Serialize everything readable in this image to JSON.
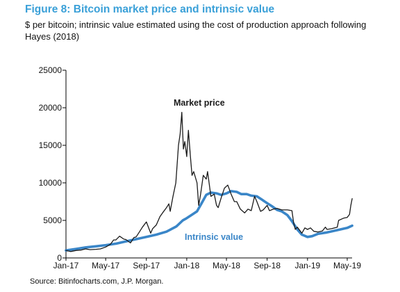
{
  "figure": {
    "title": "Figure 8: Bitcoin market price and intrinsic value",
    "subtitle": "$ per bitcoin; intrinsic value estimated using the cost of production approach following Hayes (2018)",
    "source": "Source: Bitinfocharts.com, J.P. Morgan."
  },
  "colors": {
    "title": "#3aa0d8",
    "market_price": "#1a1a1a",
    "intrinsic_value": "#3a86c8"
  },
  "chart_data": {
    "type": "line",
    "title": "Figure 8: Bitcoin market price and intrinsic value",
    "subtitle": "$ per bitcoin; intrinsic value estimated using the cost of production approach following Hayes (2018)",
    "xlabel": "",
    "ylabel": "",
    "ylim": [
      0,
      25000
    ],
    "yticks": [
      0,
      5000,
      10000,
      15000,
      20000,
      25000
    ],
    "ytick_labels": [
      "0",
      "5000",
      "10000",
      "15000",
      "20000",
      "25000"
    ],
    "xlim": [
      "2017-01-01",
      "2019-06-01"
    ],
    "xticks": [
      "2017-01-01",
      "2017-05-01",
      "2017-09-01",
      "2018-01-01",
      "2018-05-01",
      "2018-09-01",
      "2019-01-01",
      "2019-05-01"
    ],
    "xtick_labels": [
      "Jan-17",
      "May-17",
      "Sep-17",
      "Jan-18",
      "May-18",
      "Sep-18",
      "Jan-19",
      "May-19"
    ],
    "grid": false,
    "legend": "none",
    "annotations": [
      {
        "text": "Market price",
        "series": "Market price"
      },
      {
        "text": "Intrinsic value",
        "series": "Intrinsic value"
      }
    ],
    "series": [
      {
        "name": "Market price",
        "points": [
          [
            "2017-01-01",
            1000
          ],
          [
            "2017-01-15",
            850
          ],
          [
            "2017-02-01",
            1000
          ],
          [
            "2017-02-15",
            1050
          ],
          [
            "2017-03-01",
            1200
          ],
          [
            "2017-03-15",
            1100
          ],
          [
            "2017-04-01",
            1150
          ],
          [
            "2017-04-15",
            1200
          ],
          [
            "2017-05-01",
            1450
          ],
          [
            "2017-05-15",
            1800
          ],
          [
            "2017-05-25",
            2400
          ],
          [
            "2017-06-01",
            2400
          ],
          [
            "2017-06-12",
            2900
          ],
          [
            "2017-06-25",
            2500
          ],
          [
            "2017-07-01",
            2450
          ],
          [
            "2017-07-15",
            2000
          ],
          [
            "2017-07-25",
            2700
          ],
          [
            "2017-08-01",
            2800
          ],
          [
            "2017-08-10",
            3400
          ],
          [
            "2017-08-20",
            4100
          ],
          [
            "2017-09-01",
            4800
          ],
          [
            "2017-09-14",
            3300
          ],
          [
            "2017-09-20",
            3900
          ],
          [
            "2017-10-01",
            4400
          ],
          [
            "2017-10-12",
            5500
          ],
          [
            "2017-10-20",
            6000
          ],
          [
            "2017-11-01",
            6700
          ],
          [
            "2017-11-08",
            7200
          ],
          [
            "2017-11-12",
            6200
          ],
          [
            "2017-11-20",
            8100
          ],
          [
            "2017-11-29",
            10000
          ],
          [
            "2017-12-07",
            15000
          ],
          [
            "2017-12-12",
            16500
          ],
          [
            "2017-12-17",
            19400
          ],
          [
            "2017-12-22",
            14500
          ],
          [
            "2017-12-26",
            15500
          ],
          [
            "2018-01-01",
            13500
          ],
          [
            "2018-01-06",
            17000
          ],
          [
            "2018-01-12",
            13500
          ],
          [
            "2018-01-17",
            11000
          ],
          [
            "2018-01-22",
            11500
          ],
          [
            "2018-02-01",
            10000
          ],
          [
            "2018-02-06",
            7000
          ],
          [
            "2018-02-12",
            8500
          ],
          [
            "2018-02-20",
            11000
          ],
          [
            "2018-03-01",
            10500
          ],
          [
            "2018-03-05",
            11500
          ],
          [
            "2018-03-15",
            8200
          ],
          [
            "2018-03-25",
            8500
          ],
          [
            "2018-04-01",
            7000
          ],
          [
            "2018-04-06",
            6700
          ],
          [
            "2018-04-15",
            8000
          ],
          [
            "2018-04-25",
            9300
          ],
          [
            "2018-05-05",
            9700
          ],
          [
            "2018-05-15",
            8500
          ],
          [
            "2018-05-25",
            7500
          ],
          [
            "2018-06-01",
            7500
          ],
          [
            "2018-06-12",
            6500
          ],
          [
            "2018-06-25",
            6000
          ],
          [
            "2018-07-05",
            6500
          ],
          [
            "2018-07-15",
            6300
          ],
          [
            "2018-07-25",
            8200
          ],
          [
            "2018-08-01",
            7500
          ],
          [
            "2018-08-12",
            6200
          ],
          [
            "2018-08-20",
            6400
          ],
          [
            "2018-09-01",
            7000
          ],
          [
            "2018-09-08",
            6300
          ],
          [
            "2018-09-20",
            6500
          ],
          [
            "2018-10-01",
            6600
          ],
          [
            "2018-10-15",
            6400
          ],
          [
            "2018-11-01",
            6400
          ],
          [
            "2018-11-15",
            6300
          ],
          [
            "2018-11-20",
            4700
          ],
          [
            "2018-11-25",
            3800
          ],
          [
            "2018-12-01",
            4100
          ],
          [
            "2018-12-15",
            3300
          ],
          [
            "2018-12-24",
            4000
          ],
          [
            "2019-01-01",
            3800
          ],
          [
            "2019-01-10",
            4000
          ],
          [
            "2019-01-20",
            3550
          ],
          [
            "2019-02-01",
            3450
          ],
          [
            "2019-02-15",
            3600
          ],
          [
            "2019-02-24",
            4100
          ],
          [
            "2019-03-01",
            3800
          ],
          [
            "2019-03-15",
            3900
          ],
          [
            "2019-04-01",
            4100
          ],
          [
            "2019-04-05",
            5000
          ],
          [
            "2019-04-20",
            5300
          ],
          [
            "2019-05-01",
            5400
          ],
          [
            "2019-05-08",
            5800
          ],
          [
            "2019-05-12",
            7000
          ],
          [
            "2019-05-16",
            7900
          ]
        ]
      },
      {
        "name": "Intrinsic value",
        "points": [
          [
            "2017-01-01",
            1000
          ],
          [
            "2017-02-01",
            1200
          ],
          [
            "2017-03-01",
            1400
          ],
          [
            "2017-04-01",
            1550
          ],
          [
            "2017-05-01",
            1700
          ],
          [
            "2017-06-01",
            1900
          ],
          [
            "2017-07-01",
            2200
          ],
          [
            "2017-08-01",
            2500
          ],
          [
            "2017-09-01",
            2800
          ],
          [
            "2017-10-01",
            3100
          ],
          [
            "2017-11-01",
            3500
          ],
          [
            "2017-12-01",
            4200
          ],
          [
            "2017-12-20",
            5000
          ],
          [
            "2018-01-01",
            5300
          ],
          [
            "2018-01-15",
            5700
          ],
          [
            "2018-02-01",
            6200
          ],
          [
            "2018-02-15",
            7300
          ],
          [
            "2018-03-01",
            8400
          ],
          [
            "2018-03-15",
            8700
          ],
          [
            "2018-04-01",
            8600
          ],
          [
            "2018-04-15",
            8400
          ],
          [
            "2018-05-01",
            8600
          ],
          [
            "2018-05-15",
            8900
          ],
          [
            "2018-06-01",
            8800
          ],
          [
            "2018-06-15",
            8500
          ],
          [
            "2018-07-01",
            8500
          ],
          [
            "2018-07-15",
            8300
          ],
          [
            "2018-08-01",
            8200
          ],
          [
            "2018-08-15",
            7800
          ],
          [
            "2018-09-01",
            7300
          ],
          [
            "2018-09-15",
            6900
          ],
          [
            "2018-10-01",
            6400
          ],
          [
            "2018-10-15",
            6200
          ],
          [
            "2018-11-01",
            5700
          ],
          [
            "2018-11-15",
            4900
          ],
          [
            "2018-12-01",
            3800
          ],
          [
            "2018-12-15",
            3100
          ],
          [
            "2019-01-01",
            2800
          ],
          [
            "2019-01-15",
            2900
          ],
          [
            "2019-02-01",
            3200
          ],
          [
            "2019-03-01",
            3400
          ],
          [
            "2019-04-01",
            3700
          ],
          [
            "2019-05-01",
            4000
          ],
          [
            "2019-05-16",
            4300
          ]
        ]
      }
    ]
  }
}
